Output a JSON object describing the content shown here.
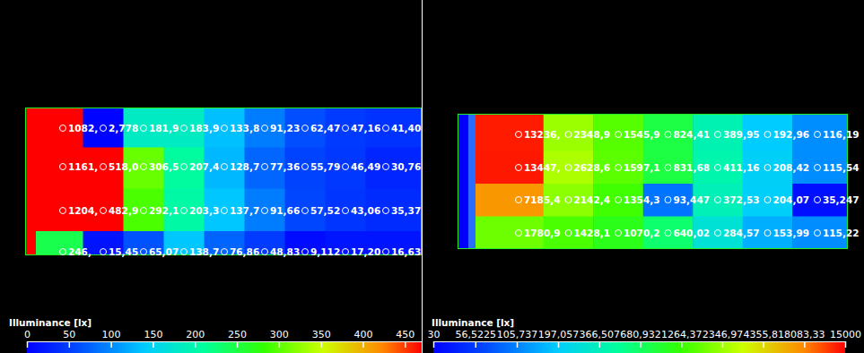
{
  "chart_data": [
    {
      "type": "heatmap",
      "title": "Illuminance [lx]",
      "data_labels": true,
      "values": [
        [
          1082,
          2.778,
          181.9,
          183.9,
          133.8,
          91.23,
          62.47,
          47.16,
          41.4
        ],
        [
          1161,
          518.0,
          306.5,
          207.4,
          128.7,
          77.36,
          55.79,
          46.49,
          30.76
        ],
        [
          1204,
          482.9,
          292.1,
          203.3,
          137.7,
          91.66,
          57.52,
          43.06,
          35.37
        ],
        [
          246,
          15.45,
          65.07,
          138.7,
          76.86,
          48.83,
          9.112,
          17.2,
          16.63
        ]
      ],
      "value_labels": [
        [
          "1082,",
          "2,778",
          "181,9",
          "183,9",
          "133,8",
          "91,23",
          "62,47",
          "47,16",
          "41,40"
        ],
        [
          "1161,",
          "518,0",
          "306,5",
          "207,4",
          "128,7",
          "77,36",
          "55,79",
          "46,49",
          "30,76"
        ],
        [
          "1204,",
          "482,9",
          "292,1",
          "203,3",
          "137,7",
          "91,66",
          "57,52",
          "43,06",
          "35,37"
        ],
        [
          "246,",
          "15,45",
          "65,07",
          "138,7",
          "76,86",
          "48,83",
          "9,112",
          "17,20",
          "16,63"
        ]
      ],
      "color_range": [
        0,
        470
      ],
      "color_ticks": [
        0,
        50,
        100,
        150,
        200,
        250,
        300,
        350,
        400,
        450
      ]
    },
    {
      "type": "heatmap",
      "title": "Illuminance [lx]",
      "data_labels": true,
      "log": true,
      "values": [
        [
          13236,
          2348.9,
          1545.9,
          824.41,
          389.95,
          192.96,
          116.19
        ],
        [
          13447,
          2628.6,
          1597.1,
          831.68,
          411.16,
          208.42,
          115.54
        ],
        [
          7185.4,
          2142.4,
          1354.3,
          93.447,
          372.53,
          204.07,
          35.247
        ],
        [
          1780.9,
          1428.1,
          1070.2,
          640.02,
          284.57,
          153.99,
          115.22
        ]
      ],
      "value_labels": [
        [
          "13236,",
          "2348,9",
          "1545,9",
          "824,41",
          "389,95",
          "192,96",
          "116,19"
        ],
        [
          "13447,",
          "2628,6",
          "1597,1",
          "831,68",
          "411,16",
          "208,42",
          "115,54"
        ],
        [
          "7185,4",
          "2142,4",
          "1354,3",
          "93,447",
          "372,53",
          "204,07",
          "35,247"
        ],
        [
          "1780,9",
          "1428,1",
          "1070,2",
          "640,02",
          "284,57",
          "153,99",
          "115,22"
        ]
      ],
      "color_range": [
        30,
        15000
      ],
      "color_ticks": [
        30,
        {
          "value": 56.5225,
          "label": "56,5225"
        },
        {
          "value": 105.737,
          "label": "105,737"
        },
        {
          "value": 197.057,
          "label": "197,057"
        },
        {
          "value": 366.507,
          "label": "366,507"
        },
        {
          "value": 680.932,
          "label": "680,932"
        },
        {
          "value": 1264.37,
          "label": "1264,37"
        },
        {
          "value": 2346.97,
          "label": "2346,97"
        },
        {
          "value": 4355.81,
          "label": "4355,81"
        },
        {
          "value": 8083.33,
          "label": "8083,33"
        },
        15000
      ]
    }
  ]
}
